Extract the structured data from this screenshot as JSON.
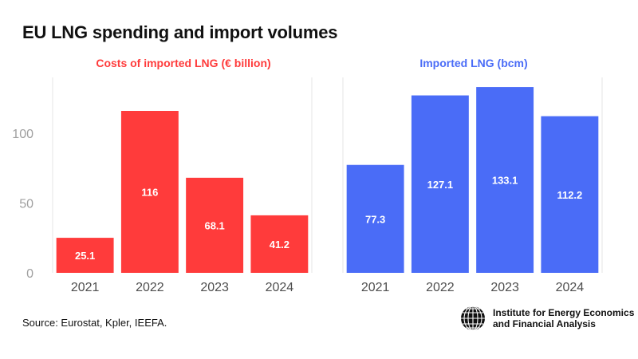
{
  "title": "EU LNG spending and import volumes",
  "source": "Source: Eurostat, Kpler, IEEFA.",
  "logo": {
    "line1": "Institute for Energy Economics",
    "line2": "and Financial Analysis"
  },
  "colors": {
    "left": "#ff3b3b",
    "right": "#4a6cf7",
    "grid": "#e6e6e6",
    "tick": "#a0a0a0",
    "axis": "#4d4d4d"
  },
  "chart_data": [
    {
      "type": "bar",
      "title": "Costs of imported LNG (€ billion)",
      "categories": [
        "2021",
        "2022",
        "2023",
        "2024"
      ],
      "values": [
        25.1,
        116,
        68.1,
        41.2
      ],
      "value_labels": [
        "25.1",
        "116",
        "68.1",
        "41.2"
      ],
      "yticks": [
        0,
        50,
        100
      ],
      "ylim": [
        0,
        140
      ],
      "grid": false
    },
    {
      "type": "bar",
      "title": "Imported LNG (bcm)",
      "categories": [
        "2021",
        "2022",
        "2023",
        "2024"
      ],
      "values": [
        77.3,
        127.1,
        133.1,
        112.2
      ],
      "value_labels": [
        "77.3",
        "127.1",
        "133.1",
        "112.2"
      ],
      "yticks": [],
      "ylim": [
        0,
        140
      ],
      "grid": false
    }
  ]
}
